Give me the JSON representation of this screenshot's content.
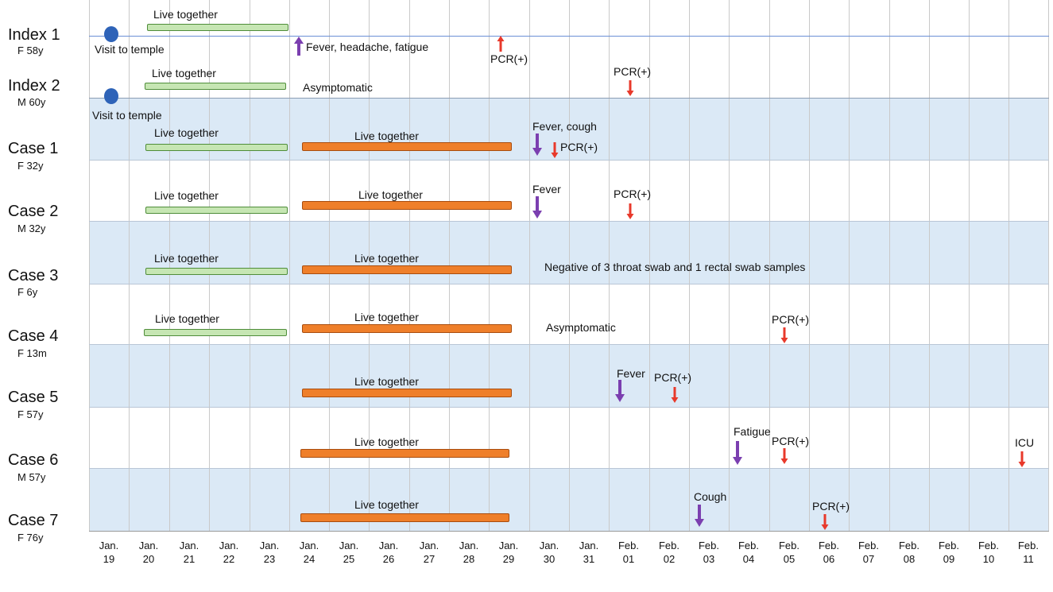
{
  "rows": [
    {
      "name": "Index 1",
      "sub": "F 58y"
    },
    {
      "name": "Index 2",
      "sub": "M 60y"
    },
    {
      "name": "Case 1",
      "sub": "F 32y"
    },
    {
      "name": "Case 2",
      "sub": "M 32y"
    },
    {
      "name": "Case 3",
      "sub": "F 6y"
    },
    {
      "name": "Case 4",
      "sub": "F 13m"
    },
    {
      "name": "Case 5",
      "sub": "F 57y"
    },
    {
      "name": "Case 6",
      "sub": "M 57y"
    },
    {
      "name": "Case 7",
      "sub": "F 76y"
    }
  ],
  "dates": [
    {
      "month": "Jan.",
      "day": "19"
    },
    {
      "month": "Jan.",
      "day": "20"
    },
    {
      "month": "Jan.",
      "day": "21"
    },
    {
      "month": "Jan.",
      "day": "22"
    },
    {
      "month": "Jan.",
      "day": "23"
    },
    {
      "month": "Jan.",
      "day": "24"
    },
    {
      "month": "Jan.",
      "day": "25"
    },
    {
      "month": "Jan.",
      "day": "26"
    },
    {
      "month": "Jan.",
      "day": "27"
    },
    {
      "month": "Jan.",
      "day": "28"
    },
    {
      "month": "Jan.",
      "day": "29"
    },
    {
      "month": "Jan.",
      "day": "30"
    },
    {
      "month": "Jan.",
      "day": "31"
    },
    {
      "month": "Feb.",
      "day": "01"
    },
    {
      "month": "Feb.",
      "day": "02"
    },
    {
      "month": "Feb.",
      "day": "03"
    },
    {
      "month": "Feb.",
      "day": "04"
    },
    {
      "month": "Feb.",
      "day": "05"
    },
    {
      "month": "Feb.",
      "day": "06"
    },
    {
      "month": "Feb.",
      "day": "07"
    },
    {
      "month": "Feb.",
      "day": "08"
    },
    {
      "month": "Feb.",
      "day": "09"
    },
    {
      "month": "Feb.",
      "day": "10"
    },
    {
      "month": "Feb.",
      "day": "11"
    }
  ],
  "labels": {
    "live_together": "Live together",
    "visit_to_temple": "Visit to temple",
    "asymptomatic": "Asymptomatic",
    "pcr_pos": "PCR(+)",
    "index1_symptoms": "Fever, headache, fatigue",
    "case1_symptoms": "Fever, cough",
    "fever": "Fever",
    "fatigue": "Fatigue",
    "cough": "Cough",
    "icu": "ICU",
    "case3_note": "Negative of 3 throat swab and 1 rectal swab samples"
  },
  "colors": {
    "band": "#dbe9f6",
    "green_bar": "#c6e6b3",
    "orange_bar": "#ef7f2a",
    "symptom_arrow": "#7b3fb0",
    "pcr_arrow": "#e8392b",
    "temple_dot": "#2e63b8"
  }
}
